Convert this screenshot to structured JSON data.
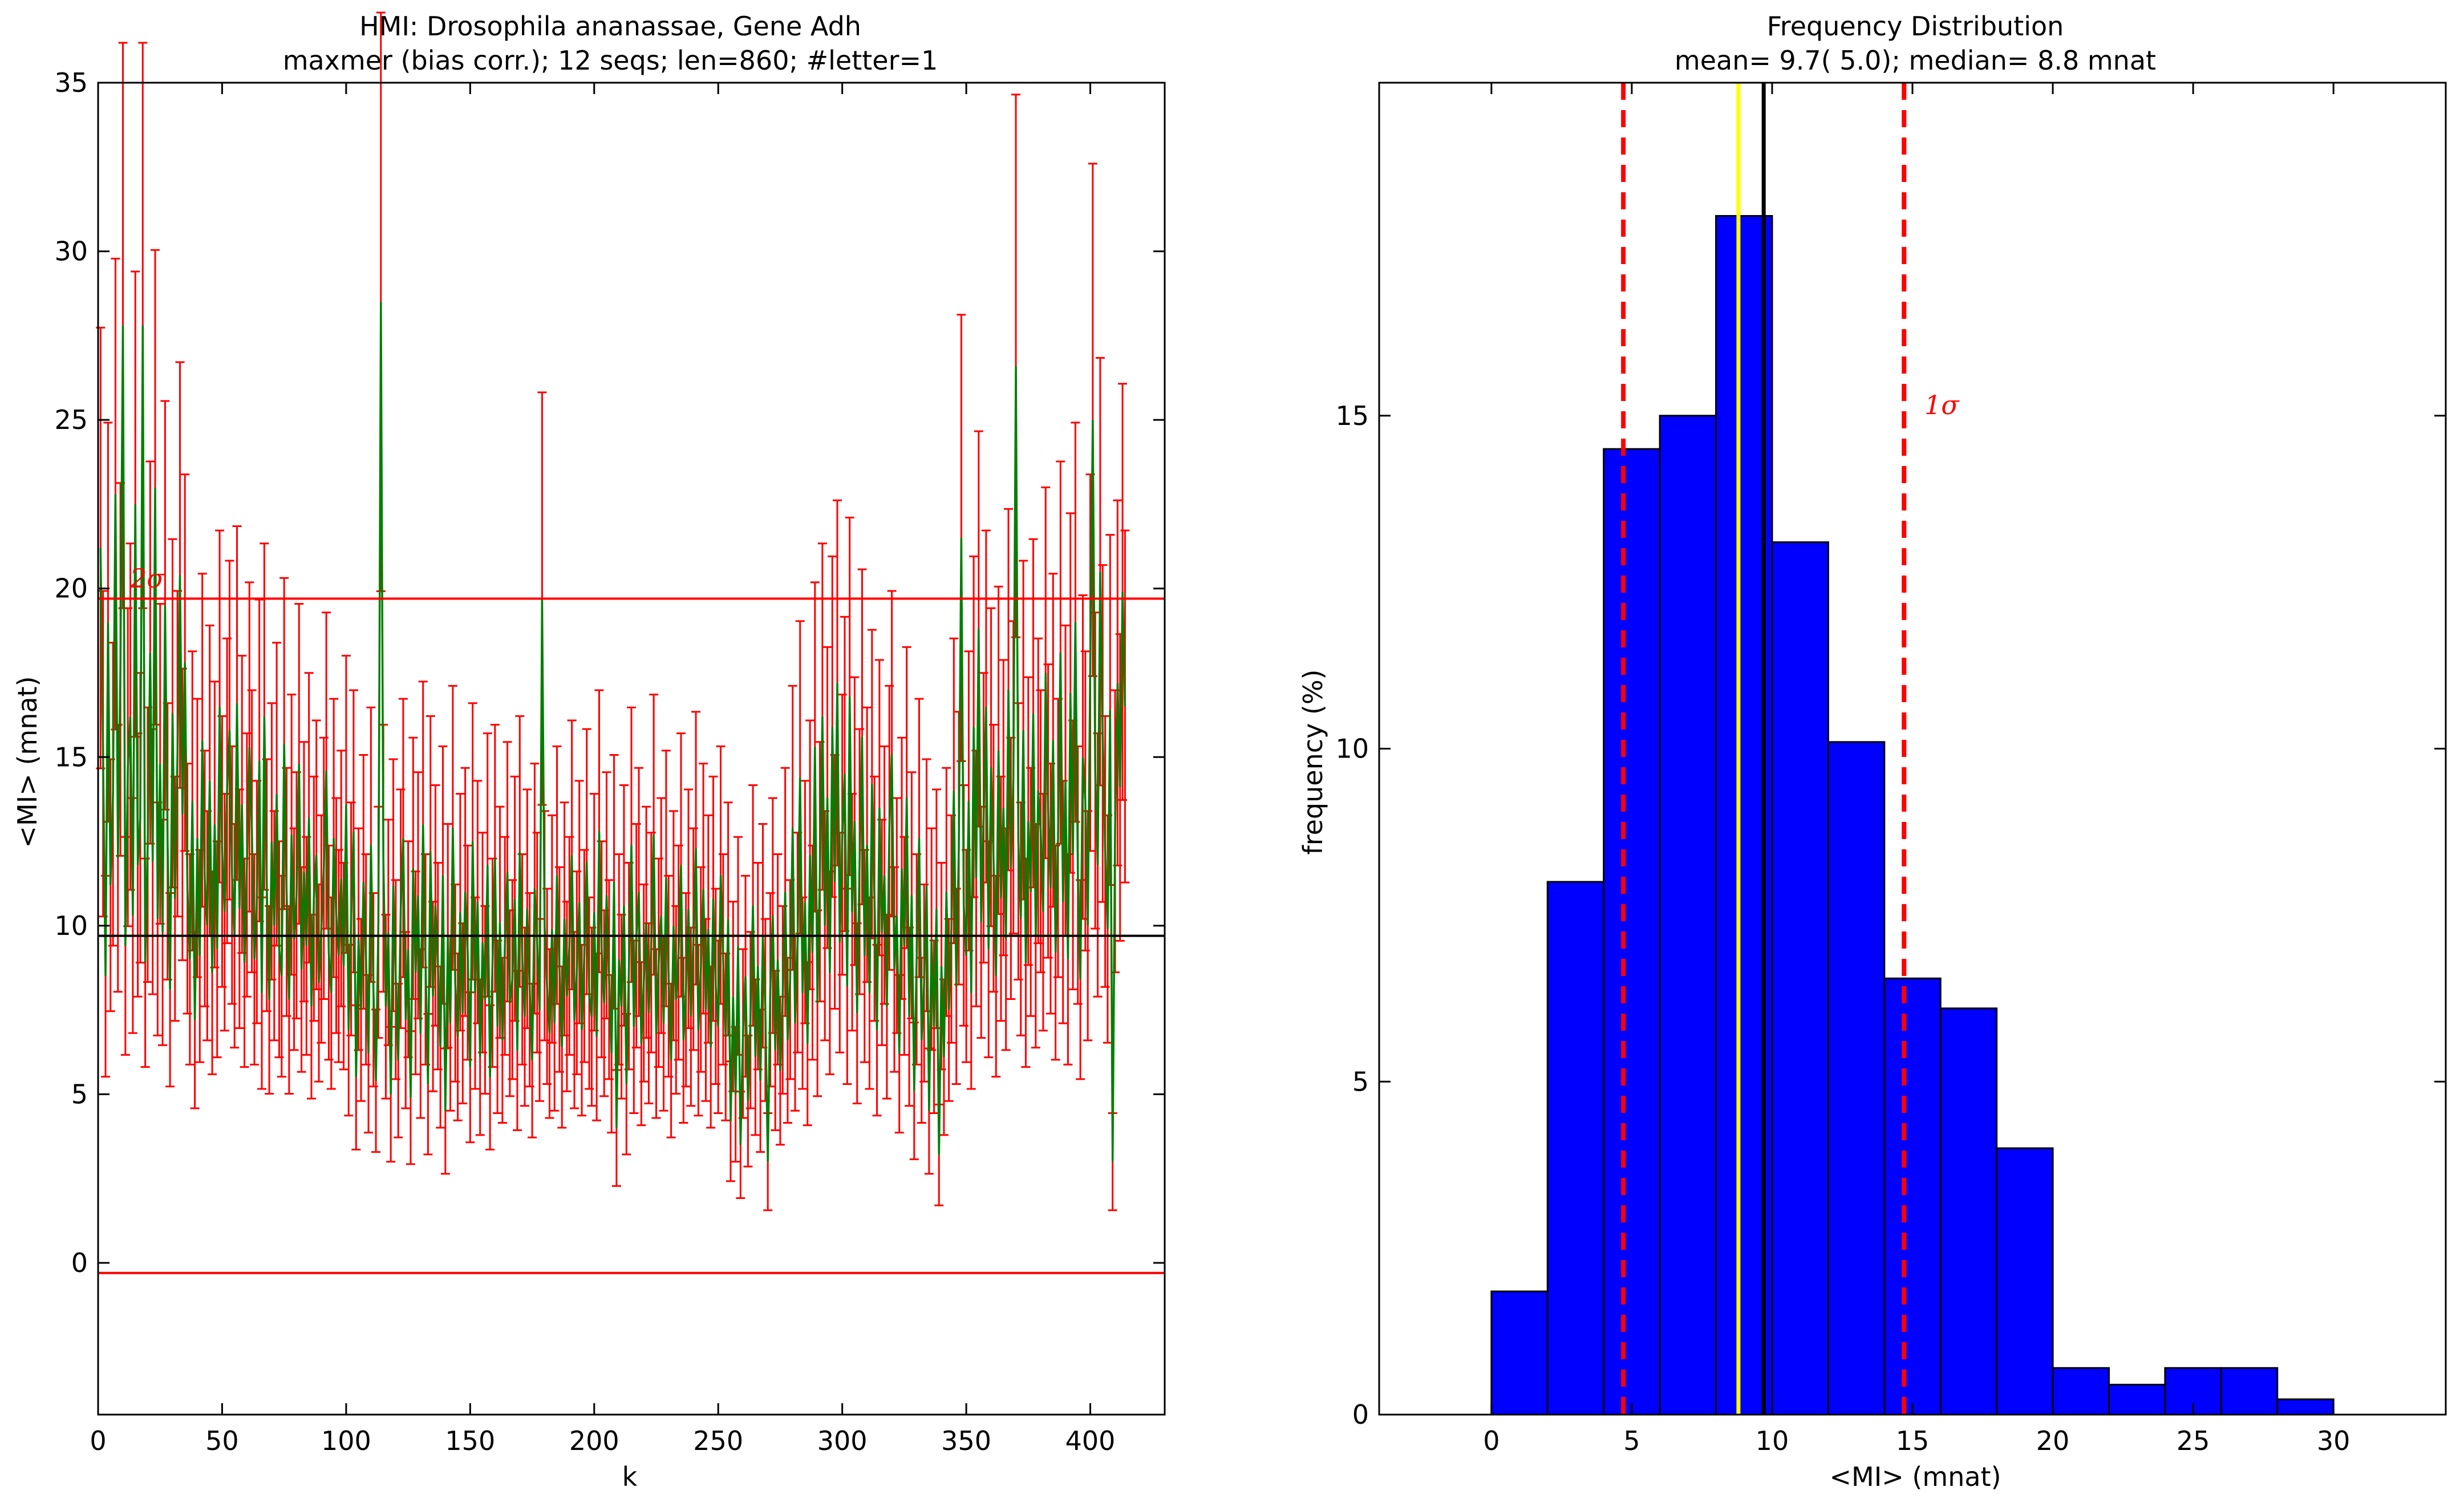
{
  "chart_data": [
    {
      "type": "line",
      "title": "HMI: Drosophila ananassae, Gene Adh",
      "subtitle": "maxmer (bias corr.); 12 seqs; len=860; #letter=1",
      "xlabel": "k",
      "ylabel": "<MI> (mnat)",
      "xlim": [
        0,
        430
      ],
      "ylim": [
        -4.5,
        35
      ],
      "xticks": [
        "0",
        "50",
        "100",
        "150",
        "200",
        "250",
        "300",
        "350",
        "400"
      ],
      "yticks": [
        "0",
        "5",
        "10",
        "15",
        "20",
        "25",
        "30",
        "35"
      ],
      "grid": false,
      "hlines": {
        "mean": 9.7,
        "upper_2sigma": 19.7,
        "lower_2sigma": -0.3
      },
      "sigma_label": "2σ",
      "line_color": "#007f00",
      "errorbar_color": "#ff0000",
      "mean_line_color": "#000000",
      "series": [
        {
          "x_start": 1,
          "x_step": 1,
          "values": [
            21.2,
            15.1,
            8.5,
            19.0,
            11.2,
            13.9,
            22.8,
            12.0,
            17.6,
            27.8,
            9.4,
            14.7,
            16.2,
            10.3,
            22.5,
            11.8,
            13.2,
            27.8,
            8.9,
            12.4,
            18.1,
            11.9,
            23.0,
            10.2,
            14.8,
            9.8,
            19.5,
            12.5,
            8.1,
            16.3,
            10.8,
            15.1,
            20.4,
            13.3,
            17.8,
            11.1,
            9.0,
            13.7,
            7.2,
            12.6,
            9.1,
            15.5,
            11.4,
            10.0,
            14.3,
            8.6,
            13.0,
            9.3,
            16.5,
            12.2,
            10.4,
            14.0,
            15.8,
            11.5,
            9.7,
            16.6,
            10.5,
            13.6,
            8.9,
            11.8,
            15.3,
            12.8,
            9.0,
            10.7,
            14.9,
            8.0,
            16.2,
            11.2,
            7.8,
            12.5,
            10.0,
            13.9,
            9.3,
            8.5,
            15.4,
            11.0,
            7.8,
            12.7,
            9.6,
            10.9,
            14.8,
            8.7,
            11.6,
            9.4,
            13.2,
            7.6,
            10.8,
            12.1,
            8.3,
            9.9,
            11.7,
            14.6,
            9.2,
            8.0,
            12.6,
            10.3,
            9.1,
            11.4,
            8.8,
            13.6,
            6.9,
            10.2,
            12.8,
            5.5,
            9.6,
            7.5,
            11.3,
            9.0,
            6.2,
            12.4,
            8.1,
            5.4,
            10.1,
            28.5,
            12.0,
            7.6,
            9.8,
            5.0,
            11.2,
            8.4,
            6.0,
            10.5,
            12.6,
            7.2,
            9.3,
            4.9,
            11.7,
            8.6,
            10.9,
            6.8,
            13.0,
            9.0,
            5.3,
            12.2,
            7.9,
            10.6,
            8.8,
            6.4,
            11.5,
            4.5,
            9.7,
            7.1,
            12.9,
            8.3,
            6.7,
            10.4,
            7.4,
            11.0,
            9.2,
            5.8,
            12.5,
            8.0,
            10.7,
            6.1,
            9.5,
            7.8,
            11.8,
            5.5,
            8.9,
            12.0,
            7.0,
            10.1,
            6.6,
            9.4,
            11.6,
            7.7,
            8.4,
            10.8,
            6.3,
            12.2,
            9.0,
            7.3,
            10.5,
            8.1,
            6.0,
            11.1,
            9.5,
            7.5,
            19.7,
            10.0,
            8.2,
            6.8,
            9.9,
            7.1,
            11.5,
            8.7,
            6.4,
            10.2,
            7.9,
            9.4,
            12.1,
            7.2,
            8.6,
            10.7,
            6.9,
            9.1,
            11.9,
            8.0,
            7.3,
            10.4,
            6.7,
            12.8,
            9.3,
            7.7,
            10.9,
            8.4,
            6.2,
            11.3,
            4.0,
            9.0,
            7.6,
            10.6,
            5.3,
            8.8,
            12.4,
            7.0,
            9.7,
            11.0,
            6.5,
            8.3,
            10.1,
            7.4,
            9.5,
            12.7,
            6.8,
            8.9,
            10.3,
            7.1,
            11.4,
            8.5,
            6.0,
            10.0,
            7.8,
            9.2,
            11.8,
            6.6,
            8.1,
            10.5,
            7.3,
            9.6,
            12.3,
            6.9,
            8.7,
            11.1,
            7.5,
            9.9,
            6.4,
            10.8,
            8.2,
            7.0,
            11.5,
            9.0,
            6.7,
            10.2,
            4.2,
            7.9,
            5.0,
            9.4,
            3.5,
            6.8,
            8.5,
            4.8,
            7.2,
            10.6,
            6.1,
            8.8,
            5.4,
            9.7,
            7.5,
            3.0,
            8.1,
            10.3,
            6.3,
            9.0,
            5.7,
            7.8,
            11.0,
            6.6,
            8.4,
            12.9,
            7.1,
            9.5,
            14.4,
            8.0,
            10.7,
            6.5,
            12.1,
            9.2,
            15.3,
            7.7,
            11.6,
            16.2,
            10.0,
            13.8,
            8.6,
            15.9,
            11.3,
            17.2,
            9.5,
            12.7,
            14.5,
            8.2,
            16.8,
            10.4,
            13.1,
            7.4,
            11.9,
            15.6,
            9.1,
            12.4,
            8.0,
            14.2,
            10.8,
            6.9,
            13.5,
            9.8,
            11.5,
            7.6,
            12.9,
            15.1,
            8.7,
            10.3,
            6.2,
            11.7,
            9.4,
            13.8,
            7.3,
            10.9,
            5.1,
            9.0,
            12.6,
            6.6,
            8.3,
            11.2,
            4.5,
            9.6,
            7.0,
            10.5,
            3.2,
            8.8,
            6.1,
            11.0,
            7.5,
            9.9,
            14.0,
            8.2,
            12.3,
            21.5,
            10.6,
            9.1,
            13.7,
            8.0,
            15.9,
            11.4,
            18.8,
            10.1,
            13.2,
            16.5,
            9.3,
            14.7,
            12.0,
            8.5,
            15.2,
            10.8,
            13.5,
            9.6,
            17.0,
            11.7,
            14.4,
            26.6,
            12.5,
            10.2,
            15.8,
            8.9,
            13.1,
            11.0,
            16.3,
            9.7,
            14.0,
            12.8,
            10.4,
            17.5,
            13.4,
            11.1,
            15.5,
            9.2,
            12.6,
            18.1,
            10.7,
            14.3,
            9.0,
            16.9,
            12.1,
            19.0,
            11.5,
            8.4,
            15.0,
            13.7,
            10.0,
            17.8,
            25.0,
            14.6,
            11.8,
            20.5,
            15.7,
            12.2,
            9.9,
            16.4,
            3.0,
            12.8,
            17.2,
            14.1,
            19.9,
            16.5
          ]
        }
      ]
    },
    {
      "type": "bar",
      "title": "Frequency Distribution",
      "subtitle": "mean=  9.7(  5.0); median=  8.8 mnat",
      "xlabel": "<MI> (mnat)",
      "ylabel": "frequency (%)",
      "xlim": [
        -4,
        34
      ],
      "ylim": [
        0,
        20
      ],
      "xticks": [
        "0",
        "5",
        "10",
        "15",
        "20",
        "25",
        "30"
      ],
      "yticks": [
        "0",
        "5",
        "10",
        "15"
      ],
      "grid": false,
      "bin_edges": [
        0,
        2,
        4,
        6,
        8,
        10,
        12,
        14,
        16,
        18,
        20,
        22,
        24,
        26,
        28,
        30
      ],
      "values": [
        1.85,
        8.0,
        14.5,
        15.0,
        18.0,
        13.1,
        10.1,
        6.55,
        6.1,
        4.0,
        0.7,
        0.45,
        0.7,
        0.7,
        0.23
      ],
      "bar_color": "#0000ff",
      "vlines": {
        "mean": 9.7,
        "median": 8.8,
        "minus_1sigma": 4.7,
        "plus_1sigma": 14.7
      },
      "sigma_label": "1σ",
      "mean_line_color": "#000000",
      "median_line_color": "#ffff00",
      "sigma_line_color": "#ff0000"
    }
  ]
}
